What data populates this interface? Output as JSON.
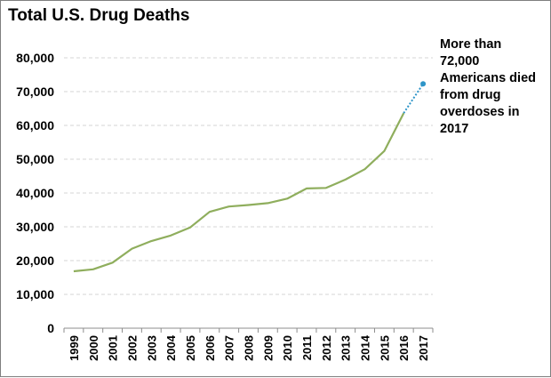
{
  "chart_data": {
    "type": "line",
    "title": "Total U.S. Drug Deaths",
    "xlabel": "",
    "ylabel": "",
    "categories": [
      "1999",
      "2000",
      "2001",
      "2002",
      "2003",
      "2004",
      "2005",
      "2006",
      "2007",
      "2008",
      "2009",
      "2010",
      "2011",
      "2012",
      "2013",
      "2014",
      "2015",
      "2016",
      "2017"
    ],
    "series": [
      {
        "values": [
          16849,
          17415,
          19394,
          23518,
          25785,
          27424,
          29813,
          34425,
          36010,
          36450,
          37004,
          38329,
          41340,
          41502,
          43982,
          47055,
          52404,
          63632,
          72306
        ],
        "color": "#8fae5d",
        "projected_segment_color": "#2e95c8"
      }
    ],
    "ylim": [
      0,
      80000
    ],
    "yticks": [
      0,
      10000,
      20000,
      30000,
      40000,
      50000,
      60000,
      70000,
      80000
    ],
    "ytick_labels": [
      "0",
      "10,000",
      "20,000",
      "30,000",
      "40,000",
      "50,000",
      "60,000",
      "70,000",
      "80,000"
    ],
    "grid": "horizontal-dashed",
    "legend": "none",
    "annotation": {
      "lines": [
        "More than",
        "72,000",
        "Americans died",
        "from drug",
        "overdoses in",
        "2017"
      ]
    }
  }
}
